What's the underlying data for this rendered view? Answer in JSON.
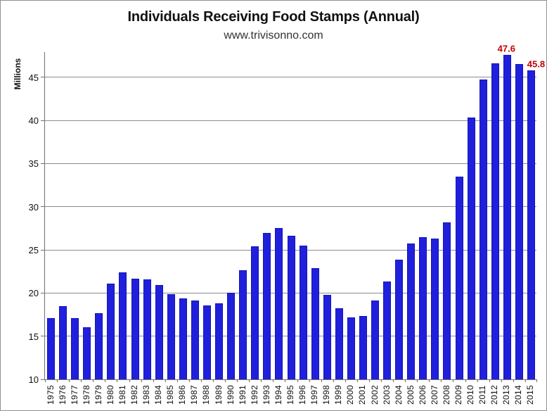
{
  "window": {
    "background": "#ffffff",
    "border_color": "#909090"
  },
  "chart_data": {
    "type": "bar",
    "title": "Individuals Receiving Food Stamps (Annual)",
    "subtitle": "www.trivisonno.com",
    "ylabel": "Millions",
    "xlabel": "",
    "categories": [
      "1975",
      "1976",
      "1977",
      "1978",
      "1979",
      "1980",
      "1981",
      "1982",
      "1983",
      "1984",
      "1985",
      "1986",
      "1987",
      "1988",
      "1989",
      "1990",
      "1991",
      "1992",
      "1993",
      "1994",
      "1995",
      "1996",
      "1997",
      "1998",
      "1999",
      "2000",
      "2001",
      "2002",
      "2003",
      "2004",
      "2005",
      "2006",
      "2007",
      "2008",
      "2009",
      "2010",
      "2011",
      "2012",
      "2013",
      "2014",
      "2015"
    ],
    "values": [
      17.1,
      18.5,
      17.1,
      16.0,
      17.7,
      21.1,
      22.4,
      21.7,
      21.6,
      20.9,
      19.9,
      19.4,
      19.1,
      18.6,
      18.8,
      20.0,
      22.6,
      25.4,
      27.0,
      27.5,
      26.6,
      25.5,
      22.9,
      19.8,
      18.2,
      17.2,
      17.3,
      19.1,
      21.3,
      23.9,
      25.7,
      26.5,
      26.3,
      28.2,
      33.5,
      40.3,
      44.7,
      46.6,
      47.6,
      46.5,
      45.8
    ],
    "ylim": [
      10,
      48
    ],
    "yticks": [
      10,
      15,
      20,
      25,
      30,
      35,
      40,
      45
    ],
    "grid": true,
    "legend": "none",
    "bar_color": "#2020dc",
    "bar_border_color": "#1414b8",
    "gridline_color": "#8c8c8c",
    "axis_color": "#707070",
    "annotation_color": "#c00000",
    "annotations": [
      {
        "category": "2013",
        "text": "47.6"
      },
      {
        "category": "2015",
        "text": "45.8"
      }
    ]
  }
}
